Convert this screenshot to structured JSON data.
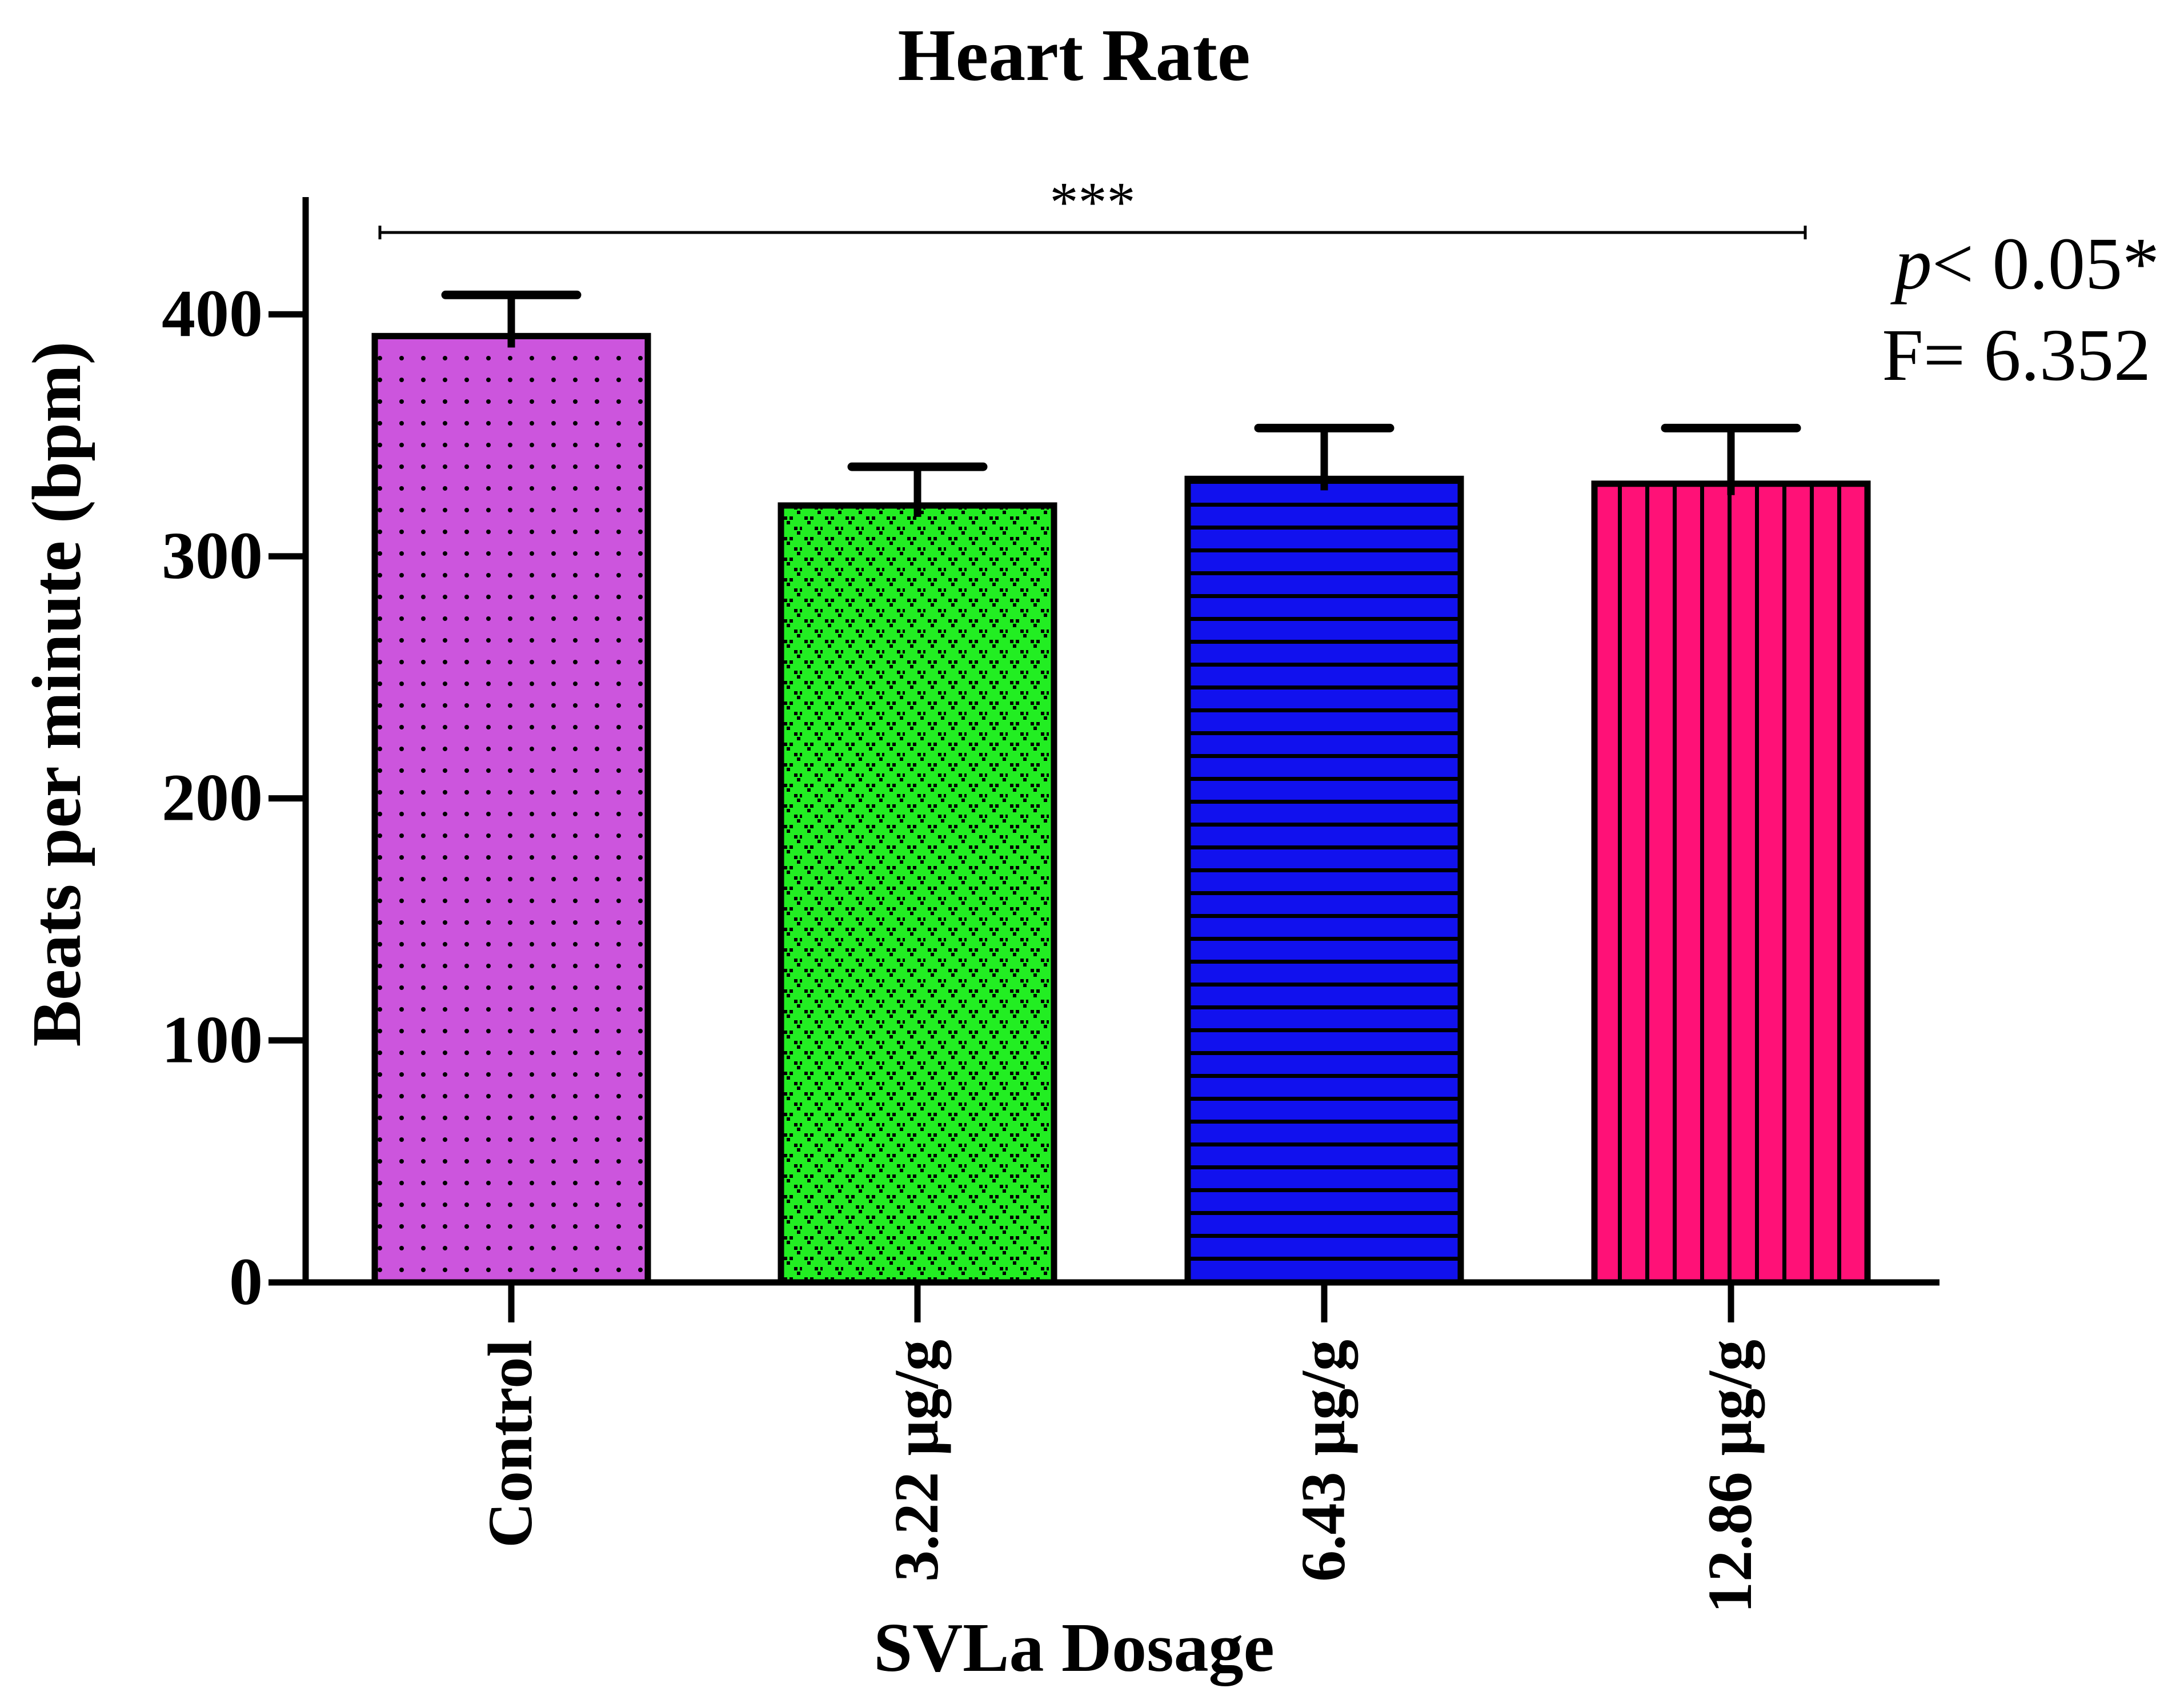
{
  "chart_data": {
    "type": "bar",
    "title": "Heart Rate",
    "xlabel": "SVLa Dosage",
    "ylabel": "Beats per minute (bpm)",
    "ylim": [
      0,
      450
    ],
    "yticks": [
      0,
      100,
      200,
      300,
      400
    ],
    "categories": [
      "Control",
      "3.22 µg/g",
      "6.43 µg/g",
      "12.86 µg/g"
    ],
    "values": [
      391,
      321,
      332,
      330
    ],
    "errors": [
      17,
      16,
      21,
      23
    ],
    "bar_colors": [
      "#CC55DD",
      "#22EE22",
      "#1111EE",
      "#FF1177"
    ],
    "bar_patterns": [
      "dots",
      "diamonds",
      "horizontal-lines",
      "vertical-lines"
    ],
    "significance": {
      "marker": "***",
      "from_category": "Control",
      "to_category": "12.86 µg/g"
    },
    "stats": {
      "p_symbol": "p",
      "p_rest": "< 0.05*",
      "f_text": "F= 6.352"
    }
  }
}
